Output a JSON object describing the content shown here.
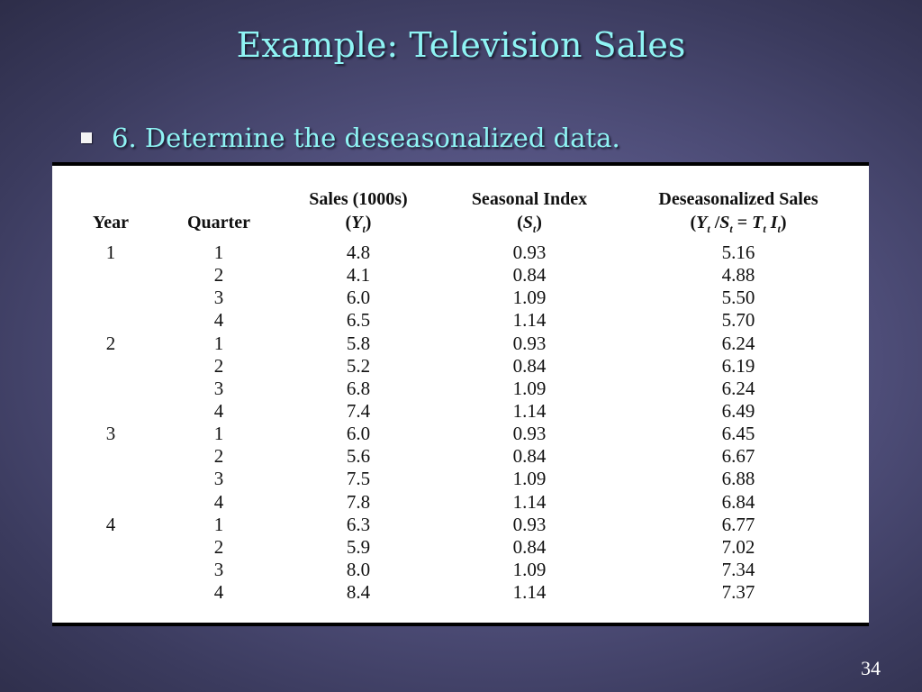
{
  "slide": {
    "title": "Example:  Television Sales",
    "bullet": "6.  Determine the deseasonalized data.",
    "page_number": "34"
  },
  "table": {
    "headers": {
      "year": "Year",
      "quarter": "Quarter",
      "sales_line1": "Sales (1000s)",
      "sales_line2": "(Yt)",
      "index_line1": "Seasonal Index",
      "index_line2": "(St)",
      "deseason_line1": "Deseasonalized Sales",
      "deseason_line2": "(Yt /St = Tt It)"
    },
    "years": [
      "1",
      "",
      "",
      "",
      "2",
      "",
      "",
      "",
      "3",
      "",
      "",
      "",
      "4",
      "",
      "",
      ""
    ],
    "quarters": [
      "1",
      "2",
      "3",
      "4",
      "1",
      "2",
      "3",
      "4",
      "1",
      "2",
      "3",
      "4",
      "1",
      "2",
      "3",
      "4"
    ],
    "sales": [
      "4.8",
      "4.1",
      "6.0",
      "6.5",
      "5.8",
      "5.2",
      "6.8",
      "7.4",
      "6.0",
      "5.6",
      "7.5",
      "7.8",
      "6.3",
      "5.9",
      "8.0",
      "8.4"
    ],
    "seasonal_index": [
      "0.93",
      "0.84",
      "1.09",
      "1.14",
      "0.93",
      "0.84",
      "1.09",
      "1.14",
      "0.93",
      "0.84",
      "1.09",
      "1.14",
      "0.93",
      "0.84",
      "1.09",
      "1.14"
    ],
    "deseasonalized": [
      "5.16",
      "4.88",
      "5.50",
      "5.70",
      "6.24",
      "6.19",
      "6.24",
      "6.49",
      "6.45",
      "6.67",
      "6.88",
      "6.84",
      "6.77",
      "7.02",
      "7.34",
      "7.37"
    ]
  },
  "colors": {
    "title_text": "#8ff4f4",
    "bullet_square": "#f4f4f4",
    "page_number": "#ffffff"
  }
}
